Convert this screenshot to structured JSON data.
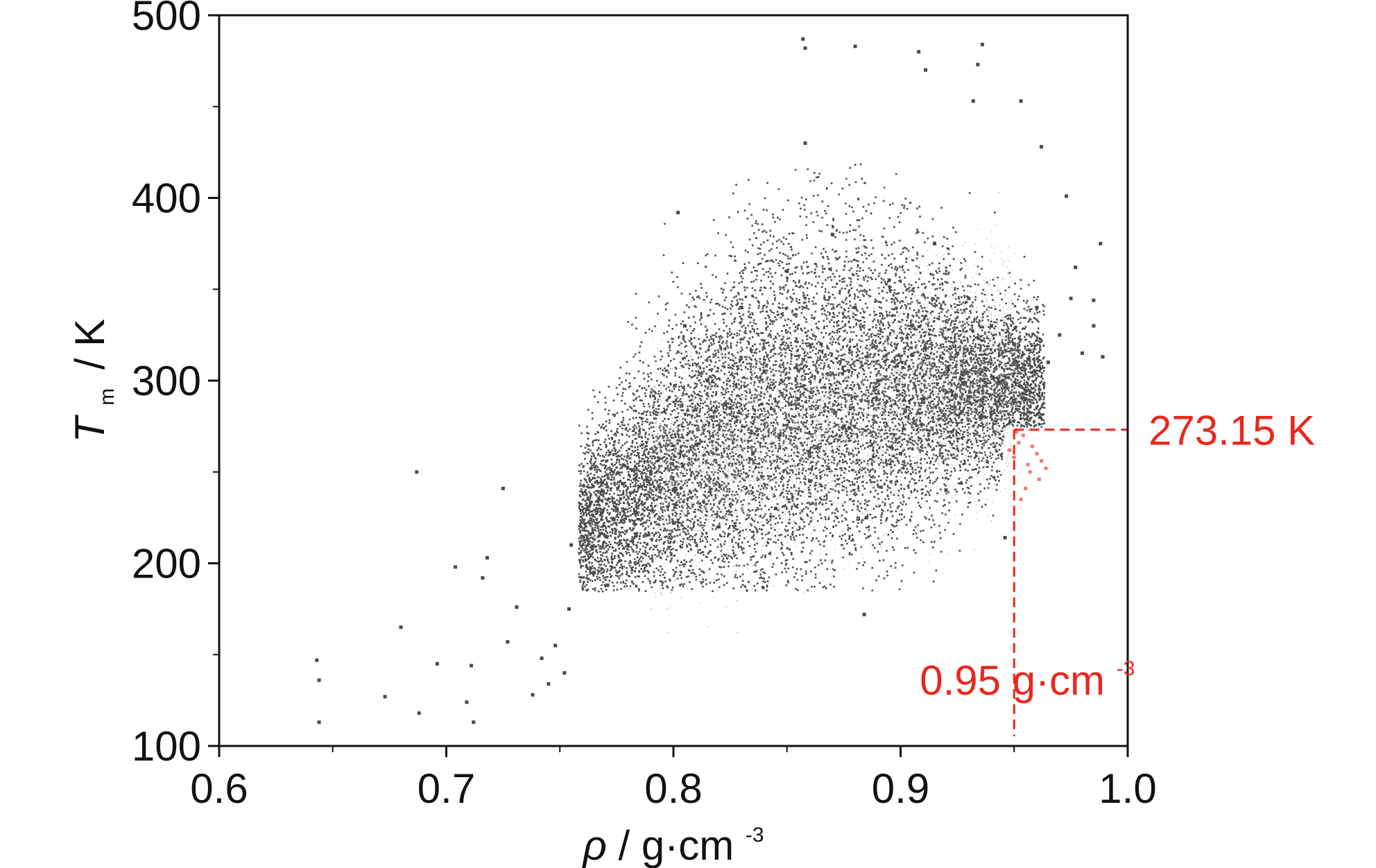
{
  "chart_data": {
    "type": "scatter",
    "xlabel": {
      "symbol": "ρ",
      "unit": "/ g·cm",
      "unit_sup": "-3"
    },
    "ylabel": {
      "symbol": "T",
      "subscript": "m",
      "unit": "/ K"
    },
    "xlim": [
      0.6,
      1.0
    ],
    "ylim": [
      100,
      500
    ],
    "xticks": [
      {
        "value": 0.6,
        "label": "0.6"
      },
      {
        "value": 0.7,
        "label": "0.7"
      },
      {
        "value": 0.8,
        "label": "0.8"
      },
      {
        "value": 0.9,
        "label": "0.9"
      },
      {
        "value": 1.0,
        "label": "1.0"
      }
    ],
    "yticks": [
      {
        "value": 100,
        "label": "100"
      },
      {
        "value": 200,
        "label": "200"
      },
      {
        "value": 300,
        "label": "300"
      },
      {
        "value": 400,
        "label": "400"
      },
      {
        "value": 500,
        "label": "500"
      }
    ],
    "grid": false,
    "colors": {
      "points": "#4a4a4a",
      "highlight": "#e8281e",
      "axis": "#111111"
    },
    "points": [
      [
        0.643,
        147
      ],
      [
        0.644,
        113
      ],
      [
        0.644,
        136
      ],
      [
        0.673,
        127
      ],
      [
        0.68,
        165
      ],
      [
        0.687,
        250
      ],
      [
        0.688,
        118
      ],
      [
        0.696,
        145
      ],
      [
        0.704,
        198
      ],
      [
        0.709,
        124
      ],
      [
        0.711,
        144
      ],
      [
        0.712,
        113
      ],
      [
        0.716,
        192
      ],
      [
        0.718,
        203
      ],
      [
        0.725,
        241
      ],
      [
        0.727,
        157
      ],
      [
        0.731,
        176
      ],
      [
        0.738,
        128
      ],
      [
        0.742,
        148
      ],
      [
        0.745,
        134
      ],
      [
        0.748,
        155
      ],
      [
        0.752,
        140
      ],
      [
        0.754,
        175
      ],
      [
        0.765,
        195
      ],
      [
        0.77,
        215
      ],
      [
        0.775,
        230
      ],
      [
        0.78,
        210
      ],
      [
        0.79,
        250
      ],
      [
        0.8,
        240
      ],
      [
        0.805,
        330
      ],
      [
        0.81,
        265
      ],
      [
        0.815,
        300
      ],
      [
        0.82,
        220
      ],
      [
        0.825,
        285
      ],
      [
        0.83,
        340
      ],
      [
        0.835,
        260
      ],
      [
        0.84,
        305
      ],
      [
        0.845,
        230
      ],
      [
        0.85,
        360
      ],
      [
        0.855,
        290
      ],
      [
        0.858,
        430
      ],
      [
        0.86,
        245
      ],
      [
        0.865,
        320
      ],
      [
        0.87,
        380
      ],
      [
        0.875,
        275
      ],
      [
        0.88,
        340
      ],
      [
        0.885,
        225
      ],
      [
        0.89,
        300
      ],
      [
        0.895,
        355
      ],
      [
        0.9,
        260
      ],
      [
        0.905,
        330
      ],
      [
        0.91,
        290
      ],
      [
        0.915,
        375
      ],
      [
        0.92,
        240
      ],
      [
        0.925,
        315
      ],
      [
        0.93,
        345
      ],
      [
        0.935,
        280
      ],
      [
        0.94,
        330
      ],
      [
        0.945,
        300
      ],
      [
        0.95,
        320
      ],
      [
        0.955,
        290
      ],
      [
        0.96,
        340
      ],
      [
        0.965,
        310
      ],
      [
        0.97,
        325
      ],
      [
        0.975,
        345
      ],
      [
        0.98,
        315
      ],
      [
        0.985,
        330
      ],
      [
        0.857,
        487
      ],
      [
        0.858,
        482
      ],
      [
        0.88,
        483
      ],
      [
        0.908,
        480
      ],
      [
        0.911,
        470
      ],
      [
        0.936,
        484
      ],
      [
        0.934,
        473
      ],
      [
        0.932,
        453
      ],
      [
        0.953,
        453
      ],
      [
        0.962,
        428
      ],
      [
        0.973,
        401
      ],
      [
        0.988,
        375
      ],
      [
        0.985,
        344
      ],
      [
        0.977,
        362
      ],
      [
        0.989,
        313
      ],
      [
        0.802,
        392
      ],
      [
        0.755,
        210
      ],
      [
        0.771,
        188
      ],
      [
        0.946,
        214
      ],
      [
        0.884,
        172
      ],
      [
        0.948,
        262
      ],
      [
        0.95,
        258
      ],
      [
        0.952,
        266
      ],
      [
        0.954,
        270
      ],
      [
        0.956,
        254
      ],
      [
        0.958,
        264
      ],
      [
        0.96,
        260
      ],
      [
        0.962,
        256
      ],
      [
        0.951,
        272
      ],
      [
        0.957,
        250
      ],
      [
        0.953,
        235
      ],
      [
        0.961,
        246
      ],
      [
        0.955,
        241
      ],
      [
        0.964,
        252
      ]
    ],
    "annotations": [
      {
        "text": "273.15 K",
        "x": 0.95,
        "y": 273.15
      },
      {
        "text": "0.95 g·cm",
        "text_sup": "-3",
        "x": 0.95,
        "y": 273.15
      }
    ]
  }
}
